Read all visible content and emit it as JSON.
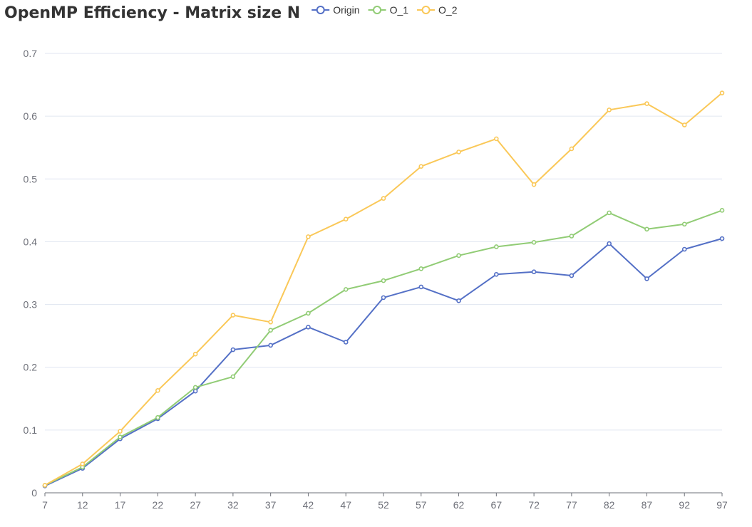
{
  "chart_data": {
    "type": "line",
    "title": "OpenMP Efficiency - Matrix size N",
    "xlabel": "",
    "ylabel": "",
    "categories": [
      "7",
      "12",
      "17",
      "22",
      "27",
      "32",
      "37",
      "42",
      "47",
      "52",
      "57",
      "62",
      "67",
      "72",
      "77",
      "82",
      "87",
      "92",
      "97"
    ],
    "ylim": [
      0,
      0.7
    ],
    "yticks": [
      "0",
      "0.1",
      "0.2",
      "0.3",
      "0.4",
      "0.5",
      "0.6",
      "0.7"
    ],
    "grid": "horizontal",
    "legend_position": "top",
    "series": [
      {
        "name": "Origin",
        "color": "#5470c6",
        "values": [
          0.011,
          0.039,
          0.086,
          0.118,
          0.162,
          0.228,
          0.235,
          0.264,
          0.24,
          0.311,
          0.328,
          0.306,
          0.348,
          0.352,
          0.346,
          0.397,
          0.341,
          0.388,
          0.405
        ]
      },
      {
        "name": "O_1",
        "color": "#91cc75",
        "values": [
          0.012,
          0.041,
          0.089,
          0.12,
          0.168,
          0.185,
          0.259,
          0.286,
          0.324,
          0.338,
          0.357,
          0.378,
          0.392,
          0.399,
          0.409,
          0.446,
          0.42,
          0.428,
          0.45
        ]
      },
      {
        "name": "O_2",
        "color": "#fac858",
        "values": [
          0.012,
          0.046,
          0.098,
          0.163,
          0.221,
          0.283,
          0.272,
          0.408,
          0.436,
          0.469,
          0.52,
          0.543,
          0.564,
          0.491,
          0.548,
          0.61,
          0.62,
          0.586,
          0.637
        ]
      }
    ]
  }
}
